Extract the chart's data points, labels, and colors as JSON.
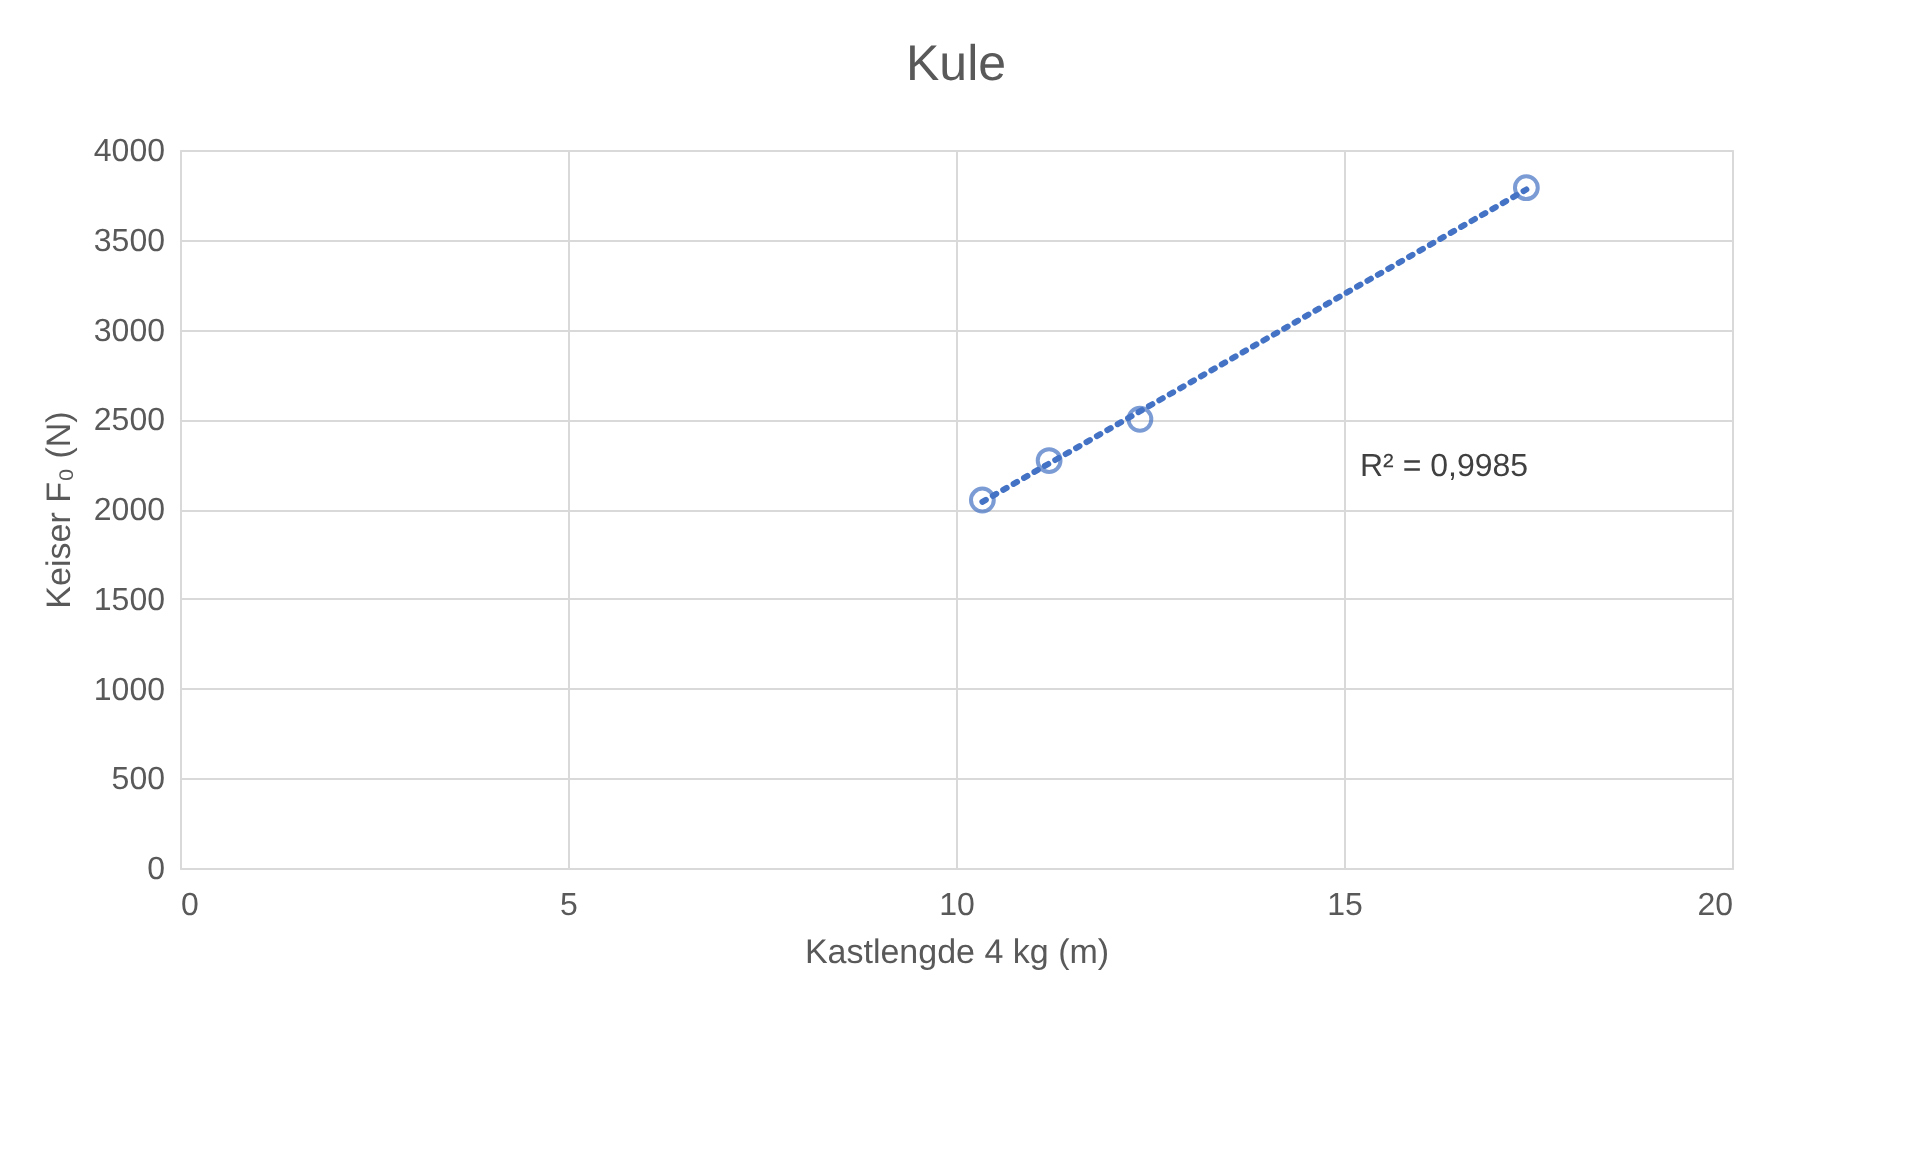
{
  "chart_data": {
    "type": "scatter",
    "title": "Kule",
    "xlabel": "Kastlengde 4 kg (m)",
    "ylabel": "Keiser F₀ (N)",
    "series": [
      {
        "type": "scatter",
        "color": "#4472c4",
        "x": [
          10.34,
          11.2,
          12.37,
          17.35
        ],
        "values": [
          2050,
          2270,
          2500,
          3790
        ],
        "marker": "circle"
      },
      {
        "type": "line",
        "color": "#4472c4",
        "x": [
          10.34,
          17.35
        ],
        "values": [
          2040,
          3780
        ],
        "line_style": "dotted"
      }
    ],
    "annotations": [
      "R² = 0,9985"
    ],
    "xlim": [
      0,
      20
    ],
    "xticks": [
      0,
      5,
      10,
      15,
      20
    ],
    "ylim": [
      0,
      4000
    ],
    "yticks": [
      0,
      500,
      1000,
      1500,
      2000,
      2500,
      3000,
      3500,
      4000
    ],
    "grid": true
  }
}
